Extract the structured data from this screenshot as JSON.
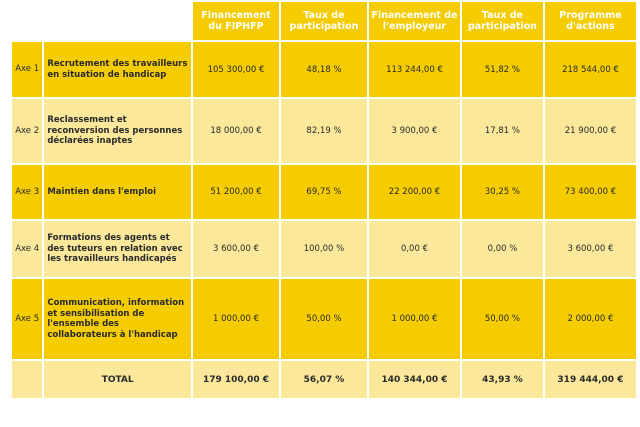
{
  "table": {
    "columns": [
      "Financement du FIPHFP",
      "Taux de participation",
      "Financement de l'employeur",
      "Taux de participation",
      "Programme d'actions"
    ],
    "rows": [
      {
        "axe": "Axe 1",
        "label": "Recrutement des travailleurs en situation de handicap",
        "values": [
          "105 300,00 €",
          "48,18 %",
          "113 244,00 €",
          "51,82 %",
          "218 544,00 €"
        ]
      },
      {
        "axe": "Axe 2",
        "label": "Reclassement et reconversion des personnes déclarées inaptes",
        "values": [
          "18 000,00 €",
          "82,19 %",
          "3 900,00 €",
          "17,81 %",
          "21 900,00 €"
        ]
      },
      {
        "axe": "Axe 3",
        "label": "Maintien dans l'emploi",
        "values": [
          "51 200,00 €",
          "69,75 %",
          "22 200,00 €",
          "30,25 %",
          "73 400,00 €"
        ]
      },
      {
        "axe": "Axe 4",
        "label": "Formations des agents et des tuteurs en relation avec les travailleurs handicapés",
        "values": [
          "3 600,00 €",
          "100,00 %",
          "0,00 €",
          "0,00 %",
          "3 600,00 €"
        ]
      },
      {
        "axe": "Axe 5",
        "label": "Communication, information et sensibilisation de l'ensemble des collaborateurs à l'handicap",
        "values": [
          "1 000,00 €",
          "50,00 %",
          "1 000,00 €",
          "50,00 %",
          "2 000,00 €"
        ]
      }
    ],
    "total": {
      "label": "TOTAL",
      "values": [
        "179 100,00 €",
        "56,07 %",
        "140 344,00 €",
        "43,93 %",
        "319 444,00 €"
      ]
    }
  },
  "colors": {
    "dark": "#f5cc00",
    "light": "#fbe89a",
    "header_text": "#ffffff"
  }
}
